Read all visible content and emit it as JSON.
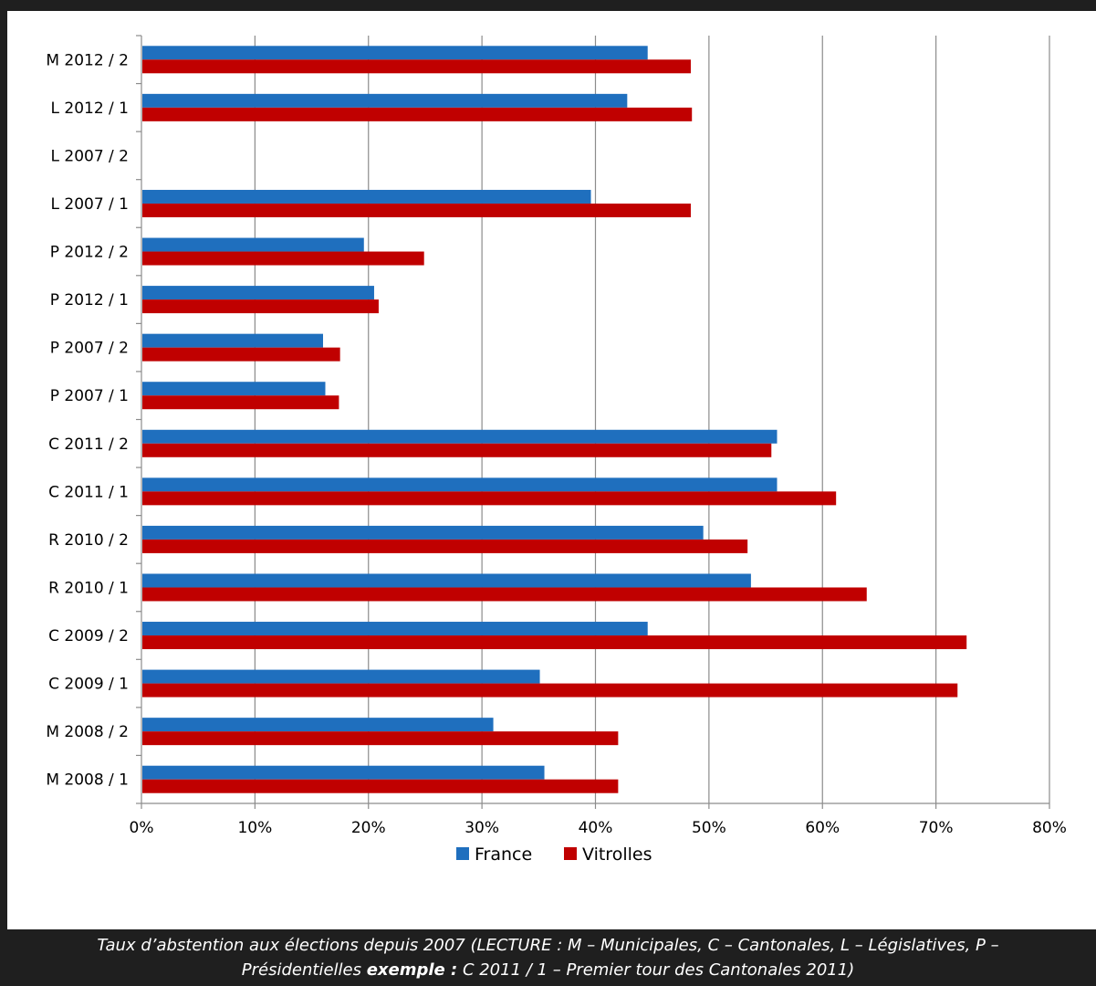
{
  "chart_data": {
    "type": "bar",
    "orientation": "horizontal",
    "categories": [
      "M 2012 / 2",
      "L 2012 / 1",
      "L 2007 / 2",
      "L 2007 / 1",
      "P 2012 / 2",
      "P 2012 / 1",
      "P 2007 / 2",
      "P 2007 / 1",
      "C 2011 / 2",
      "C 2011 / 1",
      "R 2010 / 2",
      "R 2010 / 1",
      "C 2009 / 2",
      "C 2009 / 1",
      "M 2008 / 2",
      "M 2008 / 1"
    ],
    "series": [
      {
        "name": "France",
        "color": "#1f6fbe",
        "values": [
          0.446,
          0.428,
          null,
          0.396,
          0.196,
          0.205,
          0.16,
          0.162,
          0.56,
          0.56,
          0.495,
          0.537,
          0.446,
          0.351,
          0.31,
          0.355
        ]
      },
      {
        "name": "Vitrolles",
        "color": "#c00000",
        "values": [
          0.484,
          0.485,
          null,
          0.484,
          0.249,
          0.209,
          0.175,
          0.174,
          0.555,
          0.612,
          0.534,
          0.639,
          0.727,
          0.719,
          0.42,
          0.42
        ]
      }
    ],
    "xlim": [
      0,
      0.8
    ],
    "xticks": [
      "0%",
      "10%",
      "20%",
      "30%",
      "40%",
      "50%",
      "60%",
      "70%",
      "80%"
    ],
    "grid": true,
    "legend_position": "bottom",
    "xlabel": "",
    "ylabel": ""
  },
  "caption": {
    "line1": "Taux d’abstention aux élections depuis 2007 (LECTURE : M – Municipales, C – Cantonales, L – Législatives, P –",
    "line2_a": "Présidentielles ",
    "line2_bold": "exemple :",
    "line2_b": " C 2011 / 1 – Premier tour des Cantonales 2011)"
  }
}
